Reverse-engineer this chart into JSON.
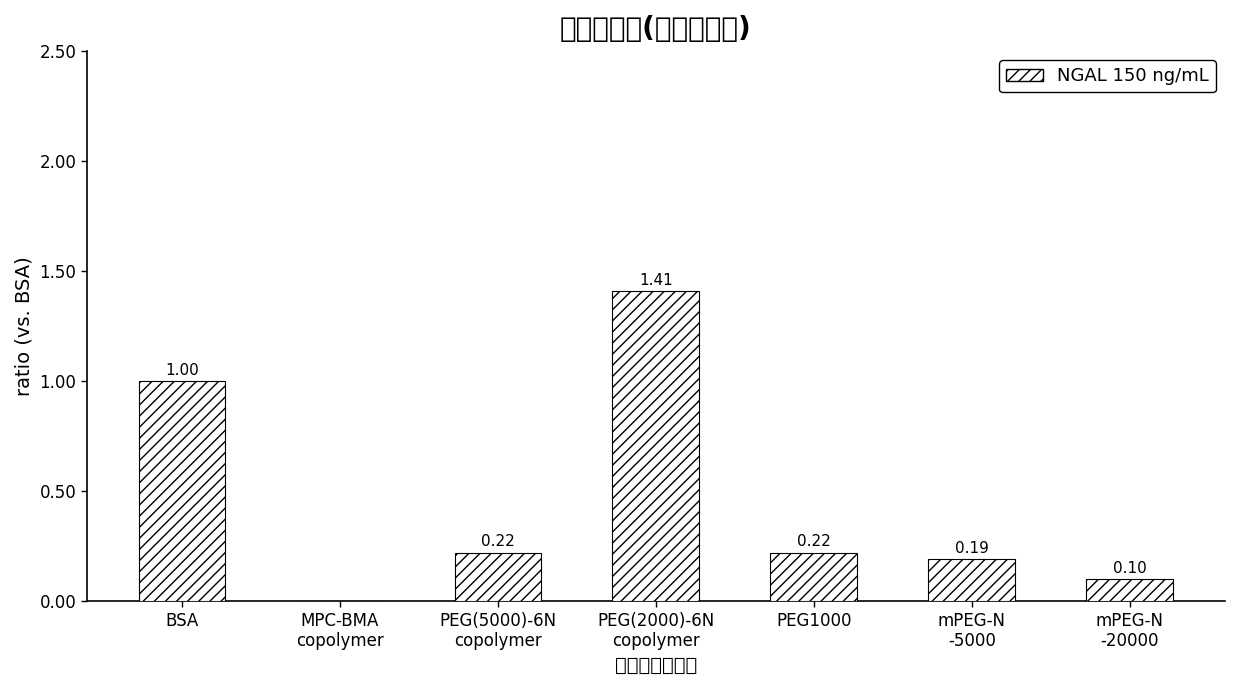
{
  "title": "试剂反应性(单克隆抗体)",
  "xlabel": "封闭剂主要成分",
  "ylabel": "ratio (vs. BSA)",
  "categories": [
    "BSA",
    "MPC-BMA\ncopolymer",
    "PEG(5000)-6N\ncopolymer",
    "PEG(2000)-6N\ncopolymer",
    "PEG1000",
    "mPEG-N\n-5000",
    "mPEG-N\n-20000"
  ],
  "values": [
    1.0,
    0.0,
    0.22,
    1.41,
    0.22,
    0.19,
    0.1
  ],
  "value_labels": [
    "1.00",
    "",
    "0.22",
    "1.41",
    "0.22",
    "0.19",
    "0.10"
  ],
  "ylim": [
    0,
    2.5
  ],
  "yticks": [
    0.0,
    0.5,
    1.0,
    1.5,
    2.0,
    2.5
  ],
  "ytick_labels": [
    "0.00",
    "0.50",
    "1.00",
    "1.50",
    "2.00",
    "2.50"
  ],
  "bar_color": "#555555",
  "hatch": "///",
  "background_color": "#ffffff",
  "legend_label": "NGAL 150 ng/mL",
  "title_fontsize": 20,
  "label_fontsize": 14,
  "tick_fontsize": 12,
  "value_label_fontsize": 11,
  "legend_fontsize": 13,
  "bar_width": 0.55
}
